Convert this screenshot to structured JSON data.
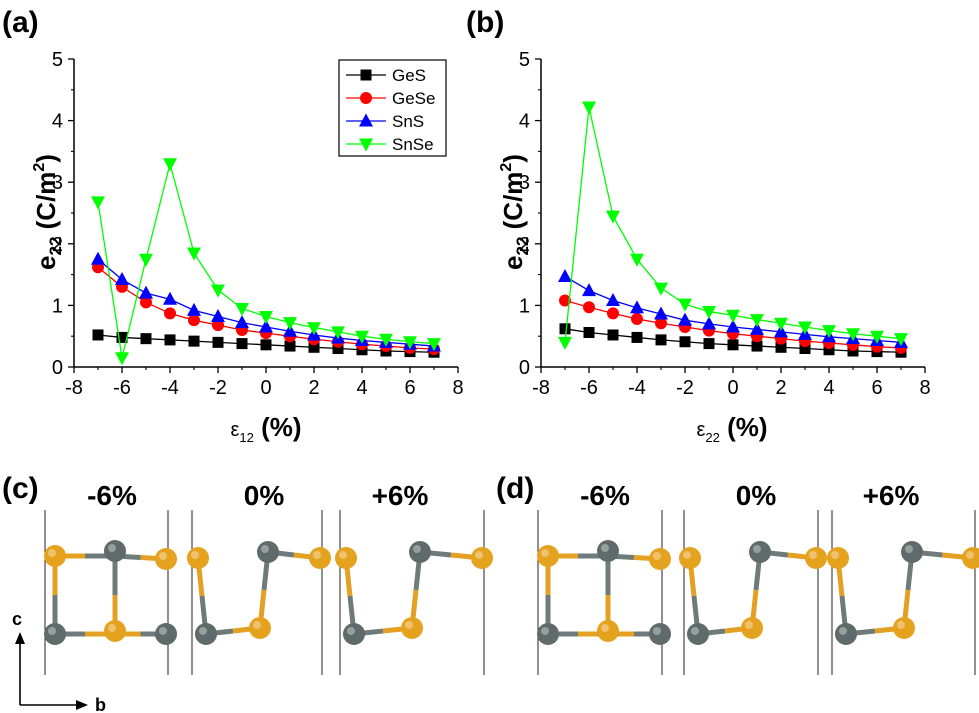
{
  "colors": {
    "GeS": "#000000",
    "GeSe": "#ff0000",
    "SnS": "#0000ff",
    "SnSe": "#00ff00",
    "atom_s": "#e5a21e",
    "atom_metal": "#5f6b6a",
    "bond_s": "#e3a022",
    "bond_metal": "#6f7b7a"
  },
  "panels": {
    "a": "(a)",
    "b": "(b)",
    "c": "(c)",
    "d": "(d)"
  },
  "structures": {
    "strain_labels": [
      "-6%",
      "0%",
      "+6%"
    ],
    "axis_c": "c",
    "axis_b": "b"
  },
  "chart_data": [
    {
      "panel": "(a)",
      "type": "line",
      "ylabel": "e22 (C/m²)",
      "ylabel_main": "e",
      "ylabel_sub": "22",
      "ylabel_rest": " (C/m",
      "ylabel_sup": "2",
      "ylabel_close": ")",
      "xlabel": "ε12 (%)",
      "xlabel_main": "ε",
      "xlabel_sub": "12",
      "xlabel_rest": " (%)",
      "xlim": [
        -8,
        8
      ],
      "ylim": [
        0,
        5
      ],
      "xticks": [
        -8,
        -6,
        -4,
        -2,
        0,
        2,
        4,
        6,
        8
      ],
      "yticks": [
        0,
        1,
        2,
        3,
        4,
        5
      ],
      "legend": "top-center",
      "x": [
        -7,
        -6,
        -5,
        -4,
        -3,
        -2,
        -1,
        0,
        1,
        2,
        3,
        4,
        5,
        6,
        7
      ],
      "series": [
        {
          "name": "GeS",
          "marker": "square",
          "values": [
            0.52,
            0.48,
            0.46,
            0.44,
            0.42,
            0.4,
            0.38,
            0.36,
            0.34,
            0.32,
            0.3,
            0.28,
            0.26,
            0.25,
            0.24
          ]
        },
        {
          "name": "GeSe",
          "marker": "circle",
          "values": [
            1.62,
            1.3,
            1.05,
            0.87,
            0.76,
            0.68,
            0.6,
            0.55,
            0.5,
            0.45,
            0.41,
            0.37,
            0.34,
            0.31,
            0.29
          ]
        },
        {
          "name": "SnS",
          "marker": "triangle-up",
          "values": [
            1.75,
            1.42,
            1.2,
            1.1,
            0.92,
            0.82,
            0.72,
            0.65,
            0.58,
            0.52,
            0.47,
            0.43,
            0.4,
            0.37,
            0.34
          ]
        },
        {
          "name": "SnSe",
          "marker": "triangle-down",
          "values": [
            2.68,
            0.15,
            1.75,
            3.3,
            1.85,
            1.25,
            0.95,
            0.82,
            0.72,
            0.64,
            0.57,
            0.5,
            0.45,
            0.41,
            0.38
          ]
        }
      ]
    },
    {
      "panel": "(b)",
      "type": "line",
      "ylabel": "e22 (C/m²)",
      "ylabel_main": "e",
      "ylabel_sub": "22",
      "ylabel_rest": " (C/m",
      "ylabel_sup": "2",
      "ylabel_close": ")",
      "xlabel": "ε22 (%)",
      "xlabel_main": "ε",
      "xlabel_sub": "22",
      "xlabel_rest": " (%)",
      "xlim": [
        -8,
        8
      ],
      "ylim": [
        0,
        5
      ],
      "xticks": [
        -8,
        -6,
        -4,
        -2,
        0,
        2,
        4,
        6,
        8
      ],
      "yticks": [
        0,
        1,
        2,
        3,
        4,
        5
      ],
      "x": [
        -7,
        -6,
        -5,
        -4,
        -3,
        -2,
        -1,
        0,
        1,
        2,
        3,
        4,
        5,
        6,
        7
      ],
      "series": [
        {
          "name": "GeS",
          "marker": "square",
          "values": [
            0.62,
            0.56,
            0.52,
            0.48,
            0.44,
            0.41,
            0.38,
            0.36,
            0.34,
            0.32,
            0.3,
            0.28,
            0.26,
            0.25,
            0.24
          ]
        },
        {
          "name": "GeSe",
          "marker": "circle",
          "values": [
            1.08,
            0.97,
            0.87,
            0.78,
            0.71,
            0.65,
            0.59,
            0.54,
            0.5,
            0.46,
            0.42,
            0.39,
            0.36,
            0.33,
            0.31
          ]
        },
        {
          "name": "SnS",
          "marker": "triangle-up",
          "values": [
            1.47,
            1.24,
            1.08,
            0.96,
            0.86,
            0.76,
            0.7,
            0.65,
            0.61,
            0.57,
            0.53,
            0.49,
            0.46,
            0.43,
            0.4
          ]
        },
        {
          "name": "SnSe",
          "marker": "triangle-down",
          "values": [
            0.4,
            4.22,
            2.45,
            1.75,
            1.28,
            1.02,
            0.9,
            0.84,
            0.77,
            0.71,
            0.65,
            0.59,
            0.54,
            0.5,
            0.46
          ]
        }
      ]
    }
  ]
}
